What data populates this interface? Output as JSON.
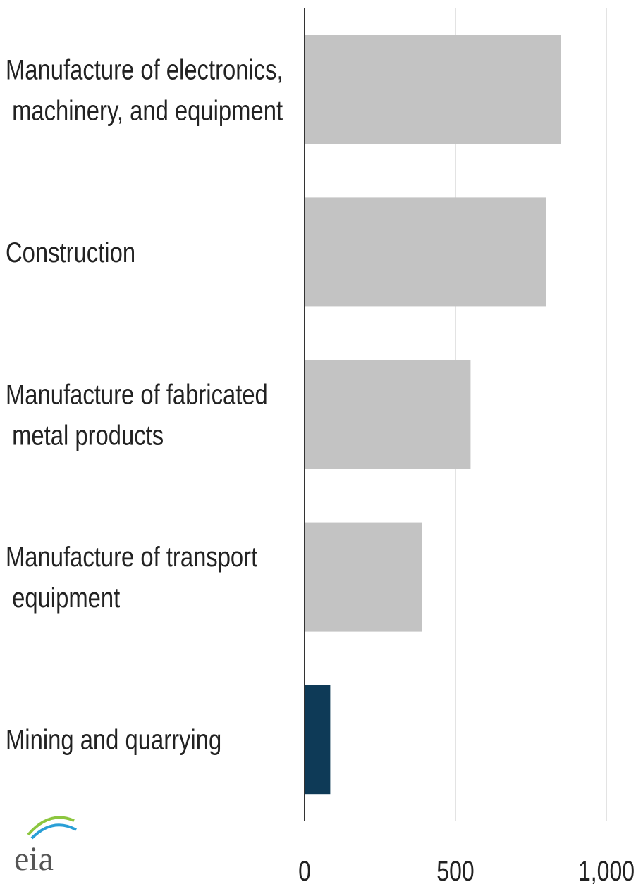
{
  "chart_data": {
    "type": "barh",
    "categories": [
      "Manufacture of electronics, machinery, and equipment",
      "Construction",
      "Manufacture of fabricated metal products",
      "Manufacture of transport equipment",
      "Mining and quarrying"
    ],
    "values": [
      850,
      800,
      550,
      390,
      85
    ],
    "colors": [
      "#c3c3c3",
      "#c3c3c3",
      "#c3c3c3",
      "#c3c3c3",
      "#0e3a57"
    ],
    "xlim": [
      0,
      1000
    ],
    "xticks": [
      0,
      500,
      {
        "value": 1000,
        "label": "1,000"
      }
    ],
    "grid": true,
    "logo": "eia"
  }
}
